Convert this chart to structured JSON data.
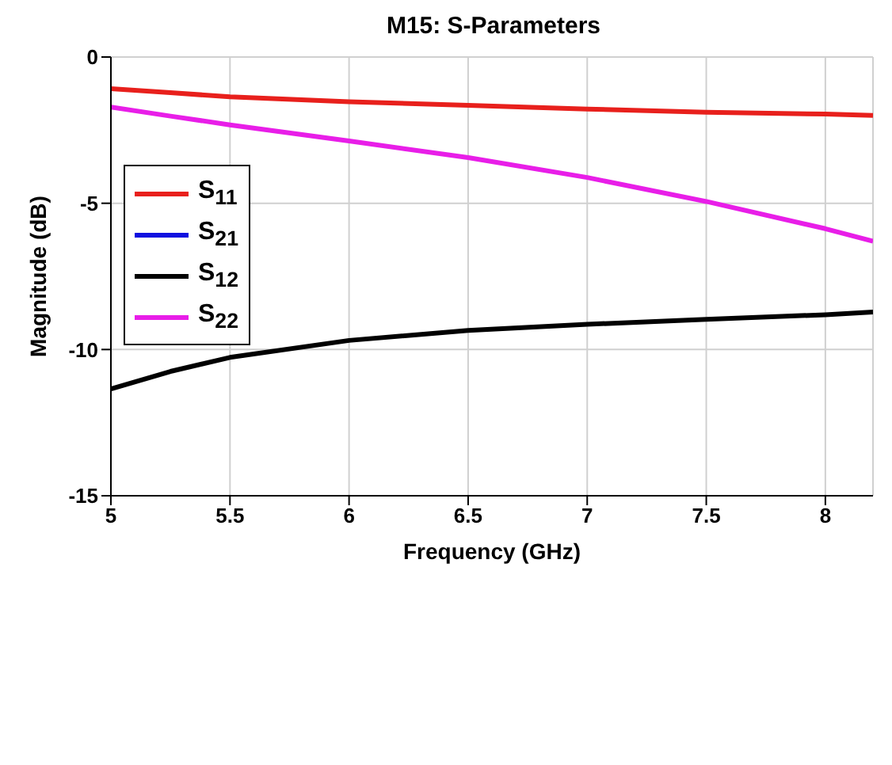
{
  "chart_data": {
    "type": "line",
    "title": "M15: S-Parameters",
    "xlabel": "Frequency (GHz)",
    "ylabel": "Magnitude (dB)",
    "x": [
      5,
      5.25,
      5.5,
      6,
      6.5,
      7,
      7.5,
      8,
      8.2
    ],
    "series": [
      {
        "name": "S$_{11}$",
        "color": "#e8201c",
        "values": [
          -1.08,
          -1.22,
          -1.36,
          -1.53,
          -1.65,
          -1.78,
          -1.89,
          -1.95,
          -2.0
        ]
      },
      {
        "name": "S$_{21}$",
        "color": "#1010e0",
        "values": [
          null,
          null,
          null,
          null,
          null,
          null,
          null,
          null,
          null
        ]
      },
      {
        "name": "S$_{12}$",
        "color": "#000000",
        "values": [
          -11.35,
          -10.75,
          -10.27,
          -9.69,
          -9.35,
          -9.14,
          -8.97,
          -8.81,
          -8.72
        ]
      },
      {
        "name": "S$_{22}$",
        "color": "#e81ee8",
        "values": [
          -1.71,
          -2.02,
          -2.32,
          -2.87,
          -3.44,
          -4.12,
          -4.94,
          -5.87,
          -6.3
        ]
      }
    ],
    "xlim": [
      5,
      8.2
    ],
    "xticks": [
      5,
      5.5,
      6,
      6.5,
      7,
      7.5,
      8
    ],
    "ylim": [
      -15,
      0
    ],
    "yticks": [
      -15,
      -10,
      -5,
      0
    ],
    "grid": true,
    "legend": "top left",
    "marker": "none",
    "line_style": "solid"
  }
}
